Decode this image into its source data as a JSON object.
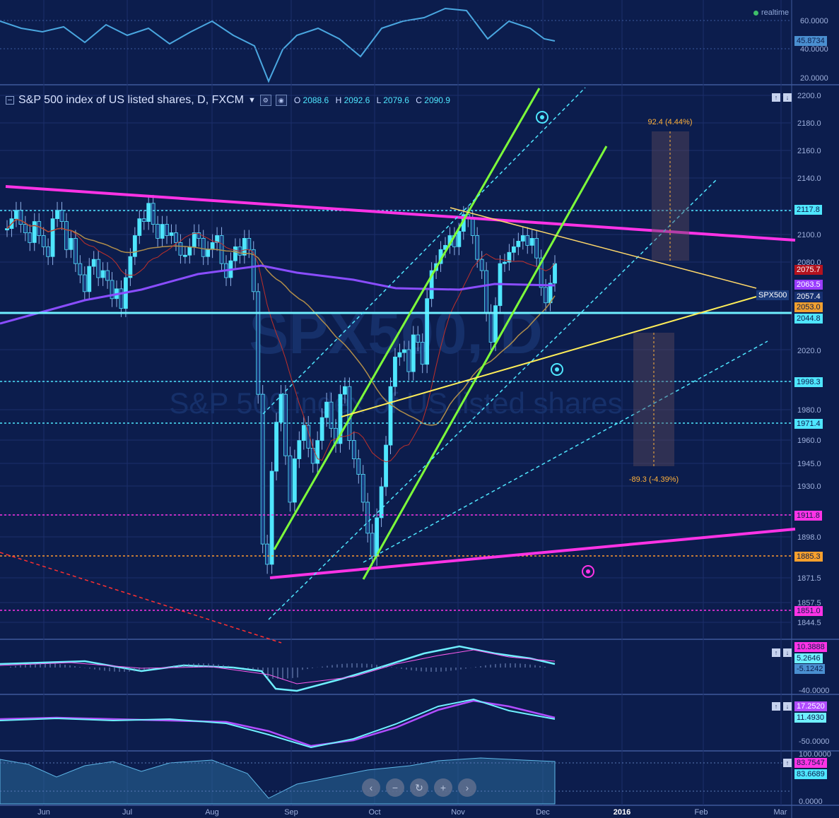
{
  "header": {
    "title": "S&P 500 index of US listed shares, D, FXCM",
    "ohlc": {
      "o_label": "O",
      "o": "2088.6",
      "h_label": "H",
      "h": "2092.6",
      "l_label": "L",
      "l": "2079.6",
      "c_label": "C",
      "c": "2090.9"
    },
    "realtime_label": "realtime"
  },
  "watermark": {
    "symbol": "SPX500, D",
    "name": "S&P 500 index of US listed shares"
  },
  "rsi_axis": [
    "60.0000",
    "40.0000",
    "20.0000"
  ],
  "rsi_value": "45.8734",
  "price_axis": [
    "2200.0",
    "2180.0",
    "2160.0",
    "2140.0",
    "2100.0",
    "2080.0",
    "2020.0",
    "2000.0",
    "1980.0",
    "1960.0",
    "1945.0",
    "1930.0",
    "1911.0",
    "1898.0",
    "1871.5",
    "1857.5",
    "1844.5"
  ],
  "price_tags": [
    {
      "label": "2117.8",
      "style": "cyan"
    },
    {
      "label": "2075.7",
      "style": "red"
    },
    {
      "label": "2063.5",
      "style": "purple"
    },
    {
      "label": "SPX500",
      "style": "symbol"
    },
    {
      "label": "2057.4",
      "style": "navy"
    },
    {
      "label": "2053.0",
      "style": "orange"
    },
    {
      "label": "2044.8",
      "style": "cyan"
    },
    {
      "label": "1998.3",
      "style": "cyan"
    },
    {
      "label": "1971.4",
      "style": "cyan"
    },
    {
      "label": "1911.8",
      "style": "magenta"
    },
    {
      "label": "1885.3",
      "style": "orange2"
    },
    {
      "label": "1851.0",
      "style": "magenta"
    }
  ],
  "measures": {
    "up": "92.4 (4.44%)",
    "down": "-89.3 (-4.39%)"
  },
  "macd_axis": [
    "-40.0000"
  ],
  "macd_tags": [
    "10.3888",
    "5.2646",
    "-5.1242"
  ],
  "osc2_axis": [
    "-50.0000"
  ],
  "osc2_tags": [
    "17.2520",
    "11.4930"
  ],
  "stoch_axis": [
    "100.0000",
    "0.0000"
  ],
  "stoch_tags": [
    "83.7547",
    "83.6689"
  ],
  "time_axis": [
    "Jun",
    "Jul",
    "Aug",
    "Sep",
    "Oct",
    "Nov",
    "Dec",
    "2016",
    "Feb",
    "Mar"
  ],
  "zoom_buttons": [
    "‹",
    "−",
    "↻",
    "+",
    "›"
  ],
  "colors": {
    "bg": "#0c1d4d",
    "candle": "#4fe6ff",
    "magenta": "#ff33e6",
    "green": "#7dff3a",
    "yellow": "#ffee58",
    "cyan": "#4fe6ff",
    "purple": "#8a4dff",
    "tan": "#b08d4a"
  },
  "chart_data": {
    "type": "candlestick",
    "title": "S&P 500 index of US listed shares, D, FXCM",
    "close_series": [
      2105,
      2112,
      2118,
      2108,
      2102,
      2095,
      2110,
      2100,
      2092,
      2085,
      2112,
      2118,
      2110,
      2090,
      2098,
      2080,
      2072,
      2060,
      2078,
      2083,
      2070,
      2075,
      2068,
      2055,
      2062,
      2048,
      2070,
      2085,
      2100,
      2112,
      2110,
      2123,
      2108,
      2098,
      2108,
      2100,
      2102,
      2095,
      2086,
      2086,
      2092,
      2102,
      2098,
      2085,
      2090,
      2095,
      2100,
      2080,
      2070,
      2082,
      2092,
      2086,
      2098,
      2090,
      2060,
      1990,
      1893,
      1880,
      1940,
      1972,
      1990,
      1950,
      1920,
      1948,
      1960,
      1970,
      1955,
      1945,
      1960,
      1975,
      1985,
      1968,
      1958,
      1990,
      1995,
      1960,
      1948,
      1938,
      1920,
      1900,
      1885,
      1910,
      1930,
      1957,
      1995,
      2015,
      2018,
      2020,
      2005,
      2030,
      2025,
      2010,
      2055,
      2075,
      2080,
      2090,
      2093,
      2100,
      2092,
      2103,
      2115,
      2112,
      2100,
      2083,
      2075,
      2045,
      2025,
      2050,
      2080,
      2081,
      2088,
      2092,
      2096,
      2100,
      2093,
      2098,
      2084,
      2063,
      2052,
      2066,
      2080
    ],
    "horizontal_levels": [
      2117.8,
      2044.8,
      1998.3,
      1971.4,
      1911.8,
      1885.3,
      1851.0
    ]
  }
}
